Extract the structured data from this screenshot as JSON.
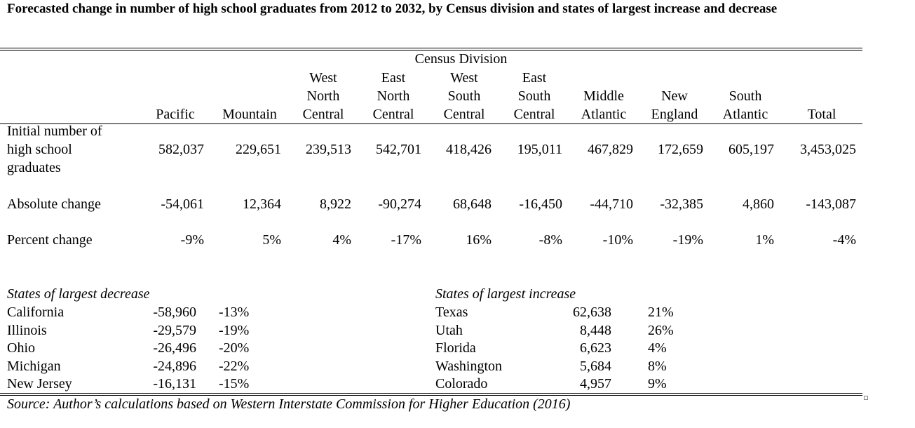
{
  "title": "Forecasted change in number of high school graduates from 2012 to 2032, by Census division and states of largest increase and decrease",
  "spanner": "Census Division",
  "columns": [
    [
      "Pacific"
    ],
    [
      "Mountain"
    ],
    [
      "West",
      "North",
      "Central"
    ],
    [
      "East",
      "North",
      "Central"
    ],
    [
      "West",
      "South",
      "Central"
    ],
    [
      "East",
      "South",
      "Central"
    ],
    [
      "Middle",
      "Atlantic"
    ],
    [
      "New",
      "England"
    ],
    [
      "South",
      "Atlantic"
    ],
    [
      "Total"
    ]
  ],
  "rows": [
    {
      "label": [
        "Initial number of",
        "high school",
        "graduates"
      ],
      "values": [
        "582,037",
        "229,651",
        "239,513",
        "542,701",
        "418,426",
        "195,011",
        "467,829",
        "172,659",
        "605,197",
        "3,453,025"
      ]
    },
    {
      "label": [
        "Absolute change"
      ],
      "values": [
        "-54,061",
        "12,364",
        "8,922",
        "-90,274",
        "68,648",
        "-16,450",
        "-44,710",
        "-32,385",
        "4,860",
        "-143,087"
      ]
    },
    {
      "label": [
        "Percent change"
      ],
      "values": [
        "-9%",
        "5%",
        "4%",
        "-17%",
        "16%",
        "-8%",
        "-10%",
        "-19%",
        "1%",
        "-4%"
      ]
    }
  ],
  "decrease": {
    "heading": "States of largest decrease",
    "states": [
      {
        "name": "California",
        "change": "-58,960",
        "pct": "-13%"
      },
      {
        "name": "Illinois",
        "change": "-29,579",
        "pct": "-19%"
      },
      {
        "name": "Ohio",
        "change": "-26,496",
        "pct": "-20%"
      },
      {
        "name": "Michigan",
        "change": "-24,896",
        "pct": "-22%"
      },
      {
        "name": "New Jersey",
        "change": "-16,131",
        "pct": "-15%"
      }
    ]
  },
  "increase": {
    "heading": "States of largest increase",
    "states": [
      {
        "name": "Texas",
        "change": "62,638",
        "pct": "21%"
      },
      {
        "name": "Utah",
        "change": "8,448",
        "pct": "26%"
      },
      {
        "name": "Florida",
        "change": "6,623",
        "pct": "4%"
      },
      {
        "name": "Washington",
        "change": "5,684",
        "pct": "8%"
      },
      {
        "name": "Colorado",
        "change": "4,957",
        "pct": "9%"
      }
    ]
  },
  "source": "Source: Author’s calculations based on Western Interstate Commission for Higher Education (2016)"
}
